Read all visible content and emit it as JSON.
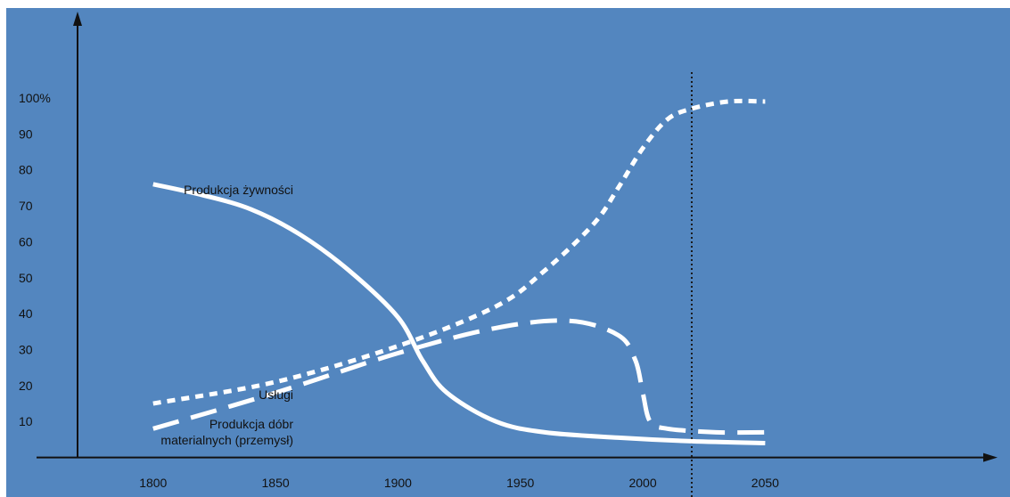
{
  "chart_data": {
    "type": "line",
    "title": "",
    "xlabel": "",
    "ylabel": "",
    "xlim": [
      1740,
      2150
    ],
    "ylim": [
      -11,
      125
    ],
    "x_ticks": [
      1800,
      1850,
      1900,
      1950,
      2000,
      2050
    ],
    "y_ticks": [
      {
        "value": 10,
        "label": "10"
      },
      {
        "value": 20,
        "label": "20"
      },
      {
        "value": 30,
        "label": "30"
      },
      {
        "value": 40,
        "label": "40"
      },
      {
        "value": 50,
        "label": "50"
      },
      {
        "value": 60,
        "label": "60"
      },
      {
        "value": 70,
        "label": "70"
      },
      {
        "value": 80,
        "label": "80"
      },
      {
        "value": 90,
        "label": "90"
      },
      {
        "value": 100,
        "label": "100%"
      }
    ],
    "reference_line_x": 2020,
    "series": [
      {
        "name": "Produkcja  żywności",
        "style": "solid",
        "points": [
          [
            1800,
            76
          ],
          [
            1820,
            73
          ],
          [
            1840,
            69
          ],
          [
            1860,
            62
          ],
          [
            1880,
            52
          ],
          [
            1900,
            39
          ],
          [
            1910,
            27
          ],
          [
            1920,
            18
          ],
          [
            1940,
            10
          ],
          [
            1960,
            7
          ],
          [
            1990,
            5.5
          ],
          [
            2020,
            4.5
          ],
          [
            2050,
            4
          ]
        ]
      },
      {
        "name": "Usługi",
        "style": "dotted",
        "points": [
          [
            1800,
            15
          ],
          [
            1850,
            21
          ],
          [
            1900,
            31
          ],
          [
            1940,
            42
          ],
          [
            1960,
            52
          ],
          [
            1980,
            65
          ],
          [
            1990,
            75
          ],
          [
            2000,
            86
          ],
          [
            2010,
            94
          ],
          [
            2020,
            97
          ],
          [
            2035,
            99
          ],
          [
            2050,
            99
          ]
        ]
      },
      {
        "name": "Produkcja dóbr materialnych (przemysł)",
        "style": "dashed",
        "points": [
          [
            1800,
            8
          ],
          [
            1850,
            18
          ],
          [
            1900,
            29
          ],
          [
            1940,
            36
          ],
          [
            1970,
            38
          ],
          [
            1990,
            34
          ],
          [
            1997,
            27
          ],
          [
            2000,
            18
          ],
          [
            2003,
            10
          ],
          [
            2010,
            8
          ],
          [
            2030,
            7
          ],
          [
            2050,
            7
          ]
        ]
      }
    ]
  }
}
